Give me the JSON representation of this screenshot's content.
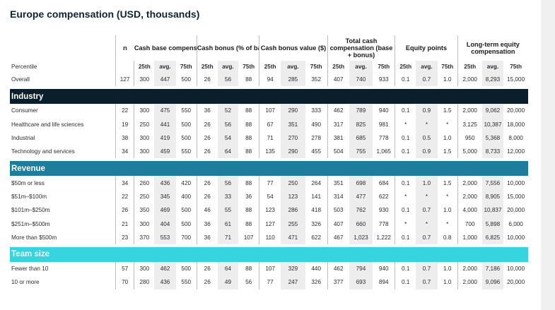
{
  "title": "Europe compensation (USD, thousands)",
  "headers": {
    "n": "n",
    "groups": [
      "Cash base compensation",
      "Cash bonus (% of base)",
      "Cash bonus value ($)",
      "Total cash compensation (base + bonus)",
      "Equity points",
      "Long-term equity compensation"
    ],
    "percentile_label": "Percentile",
    "percentiles": [
      "25th",
      "avg.",
      "75th",
      "25th",
      "avg.",
      "75th",
      "25th",
      "avg.",
      "75th",
      "25th",
      "avg.",
      "75th",
      "25th",
      "avg.",
      "75th",
      "25th",
      "avg.",
      "75th"
    ]
  },
  "overall": {
    "label": "Overall",
    "n": "127",
    "v": [
      "300",
      "447",
      "500",
      "26",
      "56",
      "88",
      "94",
      "285",
      "352",
      "407",
      "740",
      "933",
      "0.1",
      "0.7",
      "1.0",
      "2,000",
      "8,293",
      "15,000"
    ]
  },
  "sections": [
    {
      "title": "Industry",
      "rows": [
        {
          "label": "Consumer",
          "n": "22",
          "v": [
            "300",
            "475",
            "550",
            "36",
            "52",
            "88",
            "107",
            "290",
            "333",
            "462",
            "789",
            "940",
            "0.1",
            "0.9",
            "1.5",
            "2,000",
            "9,062",
            "20,000"
          ]
        },
        {
          "label": "Healthcare and life sciences",
          "n": "19",
          "v": [
            "250",
            "441",
            "500",
            "26",
            "56",
            "88",
            "67",
            "351",
            "490",
            "317",
            "825",
            "981",
            "*",
            "*",
            "*",
            "3,125",
            "10,387",
            "18,000"
          ]
        },
        {
          "label": "Industrial",
          "n": "38",
          "v": [
            "300",
            "419",
            "500",
            "26",
            "54",
            "88",
            "71",
            "270",
            "278",
            "381",
            "685",
            "778",
            "0.1",
            "0.5",
            "1.0",
            "950",
            "5,368",
            "8,000"
          ]
        },
        {
          "label": "Technology and services",
          "n": "34",
          "v": [
            "300",
            "459",
            "550",
            "26",
            "64",
            "88",
            "135",
            "290",
            "455",
            "504",
            "755",
            "1,065",
            "0.1",
            "0.9",
            "1.5",
            "5,000",
            "8,733",
            "12,000"
          ]
        }
      ]
    },
    {
      "title": "Revenue",
      "rows": [
        {
          "label": "$50m or less",
          "n": "34",
          "v": [
            "260",
            "436",
            "420",
            "26",
            "56",
            "88",
            "77",
            "250",
            "264",
            "351",
            "698",
            "684",
            "0.1",
            "1.0",
            "1.5",
            "2,000",
            "7,556",
            "10,000"
          ]
        },
        {
          "label": "$51m–$100m",
          "n": "22",
          "v": [
            "250",
            "345",
            "400",
            "26",
            "33",
            "36",
            "54",
            "123",
            "141",
            "314",
            "477",
            "622",
            "*",
            "*",
            "*",
            "2,000",
            "8,905",
            "15,000"
          ]
        },
        {
          "label": "$101m–$250m",
          "n": "26",
          "v": [
            "350",
            "469",
            "500",
            "46",
            "55",
            "88",
            "123",
            "286",
            "418",
            "503",
            "762",
            "930",
            "0.1",
            "0.7",
            "1.0",
            "4,000",
            "10,837",
            "20,000"
          ]
        },
        {
          "label": "$251m–$500m",
          "n": "21",
          "v": [
            "300",
            "404",
            "500",
            "36",
            "61",
            "88",
            "127",
            "255",
            "326",
            "407",
            "660",
            "778",
            "*",
            "*",
            "*",
            "700",
            "5,898",
            "6,000"
          ]
        },
        {
          "label": "More than $500m",
          "n": "23",
          "v": [
            "370",
            "553",
            "700",
            "36",
            "71",
            "107",
            "110",
            "471",
            "622",
            "467",
            "1,023",
            "1,222",
            "0.1",
            "0.7",
            "0.8",
            "1,000",
            "6,825",
            "10,000"
          ]
        }
      ]
    },
    {
      "title": "Team size",
      "rows": [
        {
          "label": "Fewer than 10",
          "n": "57",
          "v": [
            "300",
            "462",
            "500",
            "26",
            "64",
            "88",
            "107",
            "329",
            "440",
            "462",
            "794",
            "940",
            "0.1",
            "0.7",
            "1.0",
            "2,000",
            "7,186",
            "10,000"
          ]
        },
        {
          "label": "10 or more",
          "n": "70",
          "v": [
            "280",
            "436",
            "550",
            "26",
            "49",
            "56",
            "77",
            "247",
            "326",
            "377",
            "693",
            "894",
            "0.1",
            "0.7",
            "1.0",
            "2,000",
            "9,096",
            "20,000"
          ]
        }
      ]
    }
  ]
}
